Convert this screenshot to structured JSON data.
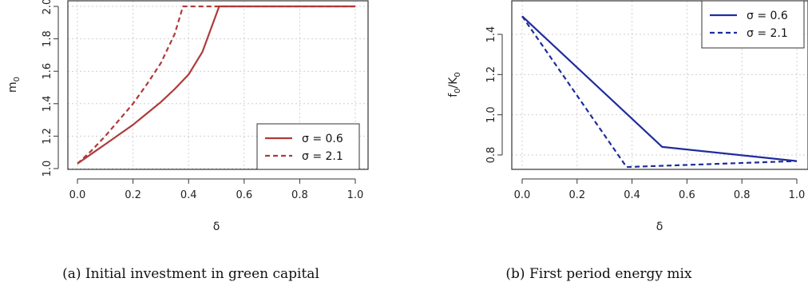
{
  "chart_data": [
    {
      "type": "line",
      "ylabel_main": "m",
      "ylabel_sub": "0",
      "xlabel": "δ",
      "xlim": [
        0,
        1
      ],
      "ylim": [
        1.0,
        2.0
      ],
      "xticks": [
        0,
        0.2,
        0.4,
        0.6,
        0.8,
        1.0
      ],
      "xtick_labels": [
        "0.0",
        "0.2",
        "0.4",
        "0.6",
        "0.8",
        "1.0"
      ],
      "yticks": [
        1.0,
        1.2,
        1.4,
        1.6,
        1.8,
        2.0
      ],
      "ytick_labels": [
        "1.0",
        "1.2",
        "1.4",
        "1.6",
        "1.8",
        "2.0"
      ],
      "grid": true,
      "legend_position": "bottom-right",
      "color": "#b03a3a",
      "series": [
        {
          "name": "σ = 0.6",
          "style": "solid",
          "x": [
            0.0,
            0.05,
            0.1,
            0.15,
            0.2,
            0.25,
            0.3,
            0.35,
            0.4,
            0.45,
            0.51,
            0.6,
            0.7,
            0.8,
            0.9,
            1.0
          ],
          "y": [
            1.03,
            1.09,
            1.15,
            1.21,
            1.27,
            1.34,
            1.41,
            1.49,
            1.58,
            1.72,
            2.0,
            2.0,
            2.0,
            2.0,
            2.0,
            2.0
          ]
        },
        {
          "name": "σ = 2.1",
          "style": "dashed",
          "x": [
            0.0,
            0.05,
            0.1,
            0.15,
            0.2,
            0.25,
            0.3,
            0.35,
            0.38,
            0.5,
            0.6,
            0.7,
            0.8,
            0.9,
            1.0
          ],
          "y": [
            1.03,
            1.11,
            1.2,
            1.3,
            1.4,
            1.52,
            1.65,
            1.83,
            2.0,
            2.0,
            2.0,
            2.0,
            2.0,
            2.0,
            2.0
          ]
        }
      ]
    },
    {
      "type": "line",
      "ylabel_main": "f",
      "ylabel_sub": "0",
      "ylabel_mid": "/K",
      "ylabel_sub2": "0",
      "xlabel": "δ",
      "xlim": [
        0,
        1
      ],
      "ylim": [
        0.72,
        1.52
      ],
      "xticks": [
        0,
        0.2,
        0.4,
        0.6,
        0.8,
        1.0
      ],
      "xtick_labels": [
        "0.0",
        "0.2",
        "0.4",
        "0.6",
        "0.8",
        "1.0"
      ],
      "yticks": [
        0.8,
        1.0,
        1.2,
        1.4
      ],
      "ytick_labels": [
        "0.8",
        "1.0",
        "1.2",
        "1.4"
      ],
      "grid": true,
      "legend_position": "top-right",
      "color": "#1f2d9c",
      "series": [
        {
          "name": "σ = 0.6",
          "style": "solid",
          "x": [
            0.0,
            0.51,
            1.0
          ],
          "y": [
            1.49,
            0.84,
            0.77
          ]
        },
        {
          "name": "σ = 2.1",
          "style": "dashed",
          "x": [
            0.0,
            0.38,
            1.0
          ],
          "y": [
            1.49,
            0.74,
            0.77
          ]
        }
      ]
    }
  ],
  "captions": [
    "(a) Initial investment in green capital",
    "(b) First period energy mix"
  ]
}
